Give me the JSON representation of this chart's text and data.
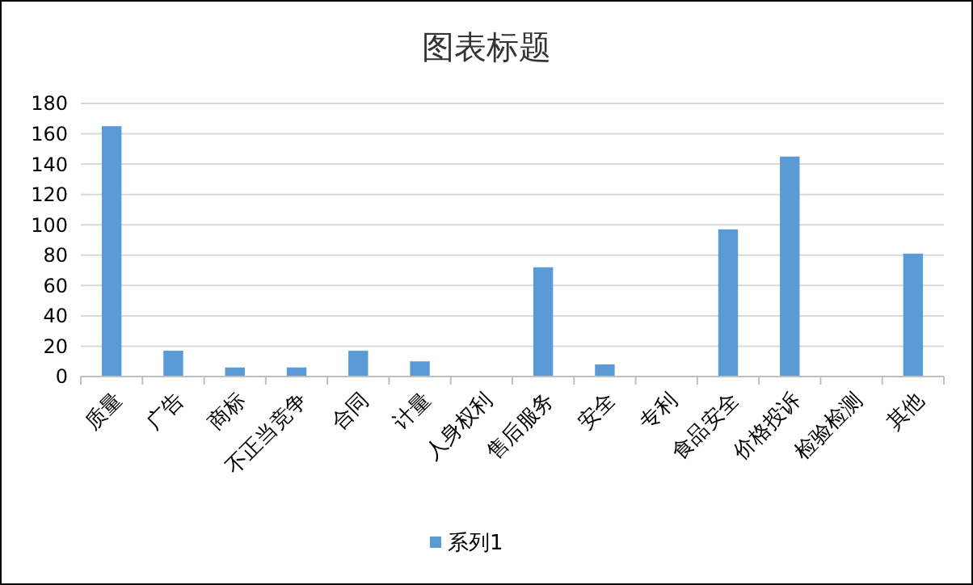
{
  "chart_data": {
    "type": "bar",
    "title": "图表标题",
    "categories": [
      "质量",
      "广告",
      "商标",
      "不正当竞争",
      "合同",
      "计量",
      "人身权利",
      "售后服务",
      "安全",
      "专利",
      "食品安全",
      "价格投诉",
      "检验检测",
      "其他"
    ],
    "series": [
      {
        "name": "系列1",
        "color": "#5b9bd5",
        "values": [
          165,
          17,
          6,
          6,
          17,
          10,
          0,
          72,
          8,
          0,
          97,
          145,
          0,
          81
        ]
      }
    ],
    "ylim": [
      0,
      180
    ],
    "yticks": [
      0,
      20,
      40,
      60,
      80,
      100,
      120,
      140,
      160,
      180
    ],
    "grid": "y",
    "legend": "bottom"
  }
}
